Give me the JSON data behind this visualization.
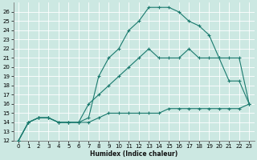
{
  "xlabel": "Humidex (Indice chaleur)",
  "background_color": "#cce8e2",
  "grid_color": "#b8d8d2",
  "line_color": "#1a7a6e",
  "xlim": [
    -0.5,
    23.5
  ],
  "ylim": [
    12,
    27
  ],
  "xticks": [
    0,
    1,
    2,
    3,
    4,
    5,
    6,
    7,
    8,
    9,
    10,
    11,
    12,
    13,
    14,
    15,
    16,
    17,
    18,
    19,
    20,
    21,
    22,
    23
  ],
  "yticks": [
    12,
    13,
    14,
    15,
    16,
    17,
    18,
    19,
    20,
    21,
    22,
    23,
    24,
    25,
    26
  ],
  "series1_x": [
    0,
    1,
    2,
    3,
    4,
    5,
    6,
    7,
    8,
    9,
    10,
    11,
    12,
    13,
    14,
    15,
    16,
    17,
    18,
    19,
    20,
    21,
    22,
    23
  ],
  "series1_y": [
    12,
    14,
    14.5,
    14.5,
    14,
    14,
    14,
    14,
    14.5,
    15,
    15,
    15,
    15,
    15,
    15,
    15.5,
    15.5,
    15.5,
    15.5,
    15.5,
    15.5,
    15.5,
    15.5,
    16
  ],
  "series2_x": [
    0,
    1,
    2,
    3,
    4,
    5,
    6,
    7,
    8,
    9,
    10,
    11,
    12,
    13,
    14,
    15,
    16,
    17,
    18,
    19,
    20,
    21,
    22,
    23
  ],
  "series2_y": [
    12,
    14,
    14.5,
    14.5,
    14,
    14,
    14,
    16,
    17,
    18,
    19,
    20,
    21,
    22,
    21,
    21,
    21,
    22,
    21,
    21,
    21,
    21,
    21,
    16
  ],
  "series3_x": [
    0,
    1,
    2,
    3,
    4,
    5,
    6,
    7,
    8,
    9,
    10,
    11,
    12,
    13,
    14,
    15,
    16,
    17,
    18,
    19,
    20,
    21,
    22,
    23
  ],
  "series3_y": [
    12,
    14,
    14.5,
    14.5,
    14,
    14,
    14,
    14.5,
    19,
    21,
    22,
    24,
    25,
    26.5,
    26.5,
    26.5,
    26,
    25,
    24.5,
    23.5,
    21,
    18.5,
    18.5,
    16
  ]
}
